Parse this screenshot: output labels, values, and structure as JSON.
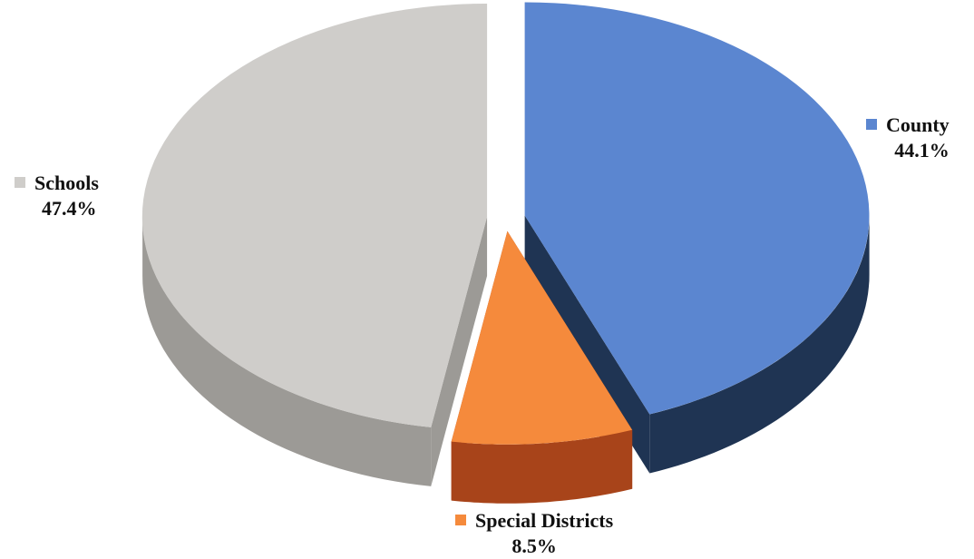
{
  "chart_data": {
    "type": "pie",
    "style": "3d-exploded",
    "slices": [
      {
        "label": "County",
        "percent_text": "44.1%",
        "value": 44.1,
        "color": "#5b86d0",
        "side_color": "#1f3453"
      },
      {
        "label": "Special Districts",
        "percent_text": "8.5%",
        "value": 8.5,
        "color": "#f58a3c",
        "side_color": "#a8441a"
      },
      {
        "label": "Schools",
        "percent_text": "47.4%",
        "value": 47.4,
        "color": "#cfcdca",
        "side_color": "#9c9a96"
      }
    ]
  }
}
